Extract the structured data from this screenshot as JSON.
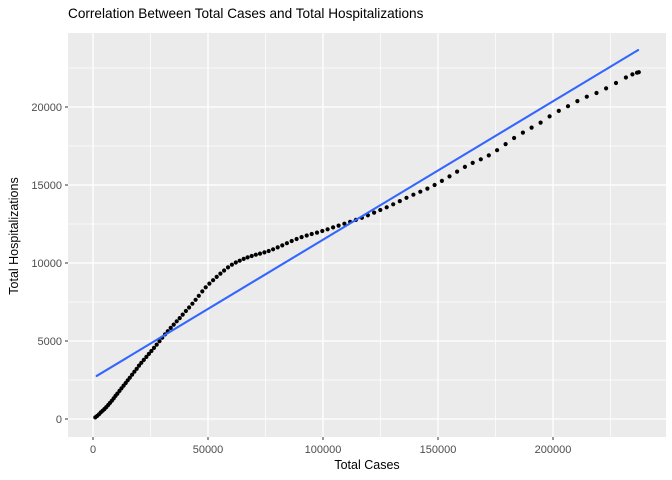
{
  "chart_data": {
    "type": "scatter",
    "title": "Correlation Between Total Cases and Total Hospitalizations",
    "xlabel": "Total Cases",
    "ylabel": "Total Hospitalizations",
    "grid": true,
    "legend": null,
    "x_ticks": [
      0,
      50000,
      100000,
      150000,
      200000
    ],
    "x_tick_labels": [
      "0",
      "50000",
      "100000",
      "150000",
      "200000"
    ],
    "x_minor_ticks": [
      25000,
      75000,
      125000,
      175000,
      225000
    ],
    "y_ticks": [
      0,
      5000,
      10000,
      15000,
      20000
    ],
    "y_tick_labels": [
      "0",
      "5000",
      "10000",
      "15000",
      "20000"
    ],
    "y_minor_ticks": [
      2500,
      7500,
      12500,
      17500,
      22500
    ],
    "axes": {
      "x_min": -10870,
      "x_max": 249130,
      "y_min": -1154,
      "y_max": 24744,
      "panel": {
        "left": 68,
        "right": 666,
        "top": 33,
        "bottom": 437
      }
    },
    "trend_line": {
      "x1": 1600,
      "y1": 2760,
      "x2": 237000,
      "y2": 23650
    },
    "points": [
      [
        1000,
        100
      ],
      [
        1800,
        190
      ],
      [
        2600,
        300
      ],
      [
        3400,
        420
      ],
      [
        4200,
        530
      ],
      [
        5000,
        640
      ],
      [
        5800,
        760
      ],
      [
        6600,
        900
      ],
      [
        7400,
        1030
      ],
      [
        8200,
        1170
      ],
      [
        9000,
        1320
      ],
      [
        9800,
        1480
      ],
      [
        10600,
        1630
      ],
      [
        11500,
        1800
      ],
      [
        12400,
        1970
      ],
      [
        13300,
        2140
      ],
      [
        14200,
        2310
      ],
      [
        15100,
        2480
      ],
      [
        16000,
        2650
      ],
      [
        17000,
        2840
      ],
      [
        18000,
        3030
      ],
      [
        19000,
        3220
      ],
      [
        20000,
        3420
      ],
      [
        21000,
        3600
      ],
      [
        22100,
        3790
      ],
      [
        23200,
        3980
      ],
      [
        24300,
        4170
      ],
      [
        25400,
        4360
      ],
      [
        26500,
        4560
      ],
      [
        27700,
        4770
      ],
      [
        28900,
        4990
      ],
      [
        30100,
        5210
      ],
      [
        31300,
        5420
      ],
      [
        32500,
        5630
      ],
      [
        33800,
        5840
      ],
      [
        35100,
        6050
      ],
      [
        36400,
        6260
      ],
      [
        37700,
        6470
      ],
      [
        39000,
        6690
      ],
      [
        40400,
        6920
      ],
      [
        41800,
        7150
      ],
      [
        43200,
        7390
      ],
      [
        44600,
        7640
      ],
      [
        46000,
        7900
      ],
      [
        47500,
        8180
      ],
      [
        49000,
        8440
      ],
      [
        50600,
        8680
      ],
      [
        52200,
        8900
      ],
      [
        53800,
        9110
      ],
      [
        55400,
        9320
      ],
      [
        57000,
        9520
      ],
      [
        58700,
        9720
      ],
      [
        60400,
        9890
      ],
      [
        62100,
        10030
      ],
      [
        63800,
        10150
      ],
      [
        65500,
        10260
      ],
      [
        67200,
        10360
      ],
      [
        69000,
        10450
      ],
      [
        70800,
        10530
      ],
      [
        72600,
        10600
      ],
      [
        74500,
        10680
      ],
      [
        76400,
        10770
      ],
      [
        78300,
        10880
      ],
      [
        80300,
        11000
      ],
      [
        82300,
        11130
      ],
      [
        84300,
        11270
      ],
      [
        86400,
        11410
      ],
      [
        88500,
        11540
      ],
      [
        90700,
        11660
      ],
      [
        92900,
        11760
      ],
      [
        95100,
        11860
      ],
      [
        97400,
        11950
      ],
      [
        99700,
        12050
      ],
      [
        102000,
        12160
      ],
      [
        104400,
        12280
      ],
      [
        106800,
        12400
      ],
      [
        109300,
        12520
      ],
      [
        111800,
        12640
      ],
      [
        114300,
        12760
      ],
      [
        116900,
        12900
      ],
      [
        119500,
        13060
      ],
      [
        122200,
        13230
      ],
      [
        124900,
        13400
      ],
      [
        127700,
        13570
      ],
      [
        130500,
        13760
      ],
      [
        133400,
        13970
      ],
      [
        136300,
        14180
      ],
      [
        139300,
        14380
      ],
      [
        142300,
        14570
      ],
      [
        145400,
        14770
      ],
      [
        148500,
        15000
      ],
      [
        151700,
        15260
      ],
      [
        155000,
        15550
      ],
      [
        158300,
        15860
      ],
      [
        161700,
        16160
      ],
      [
        165100,
        16420
      ],
      [
        168600,
        16650
      ],
      [
        172100,
        16900
      ],
      [
        175700,
        17230
      ],
      [
        179400,
        17620
      ],
      [
        183100,
        18010
      ],
      [
        186900,
        18360
      ],
      [
        190700,
        18680
      ],
      [
        194600,
        19000
      ],
      [
        198500,
        19400
      ],
      [
        202500,
        19750
      ],
      [
        206500,
        20050
      ],
      [
        210600,
        20380
      ],
      [
        214700,
        20660
      ],
      [
        218900,
        20900
      ],
      [
        223100,
        21190
      ],
      [
        227400,
        21540
      ],
      [
        231700,
        21890
      ],
      [
        234500,
        22090
      ],
      [
        236500,
        22200
      ],
      [
        237300,
        22230
      ]
    ],
    "style": {
      "panel_bg": "#EBEBEB",
      "grid_color": "#FFFFFF",
      "point_color": "#000000",
      "line_color": "#3366FF",
      "tick_label_color": "#4D4D4D",
      "tick_mark_color": "#333333",
      "point_radius": 2.1,
      "line_width": 2.1
    }
  }
}
